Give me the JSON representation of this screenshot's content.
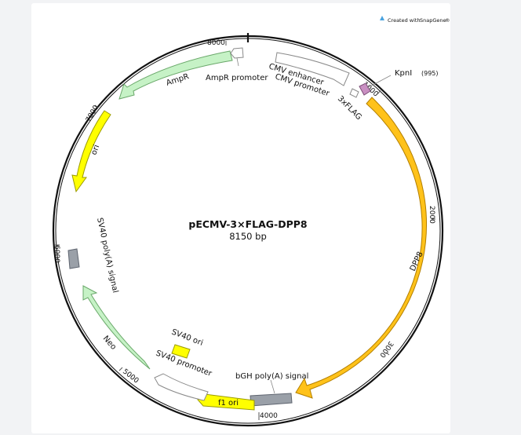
{
  "watermark": {
    "text": "Created with SnapGene®",
    "brand_prefix": "Created with ",
    "brand_name": "SnapGene",
    "brand_suffix": "®"
  },
  "plasmid": {
    "name": "pECMV-3×FLAG-DPP8",
    "size_label": "8150 bp",
    "total_bp": 8150
  },
  "ticks": [
    {
      "label": "1000",
      "bp": 1000
    },
    {
      "label": "2000",
      "bp": 2000
    },
    {
      "label": "3000",
      "bp": 3000
    },
    {
      "label": "4000",
      "bp": 4000
    },
    {
      "label": "5000",
      "bp": 5000
    },
    {
      "label": "6000",
      "bp": 6000
    },
    {
      "label": "7000",
      "bp": 7000
    },
    {
      "label": "8000",
      "bp": 8000
    }
  ],
  "features": [
    {
      "id": "cmv-enhancer",
      "label": "CMV enhancer",
      "color": "#ffffff",
      "direction": "cw"
    },
    {
      "id": "cmv-promoter",
      "label": "CMV promoter",
      "color": "#ffffff",
      "direction": "cw"
    },
    {
      "id": "3xflag",
      "label": "3xFLAG",
      "color": "#c98fc2",
      "direction": "cw"
    },
    {
      "id": "dpp8",
      "label": "DPP8",
      "color": "#ffc21a",
      "direction": "cw"
    },
    {
      "id": "bgh-polya",
      "label": "bGH poly(A) signal",
      "color": "#9aa0a8",
      "direction": "none"
    },
    {
      "id": "f1-ori",
      "label": "f1 ori",
      "color": "#ffff00",
      "direction": "ccw"
    },
    {
      "id": "sv40-promoter",
      "label": "SV40 promoter",
      "color": "#ffffff",
      "direction": "ccw"
    },
    {
      "id": "sv40-ori",
      "label": "SV40 ori",
      "color": "#ffff00",
      "direction": "none"
    },
    {
      "id": "neo",
      "label": "Neo",
      "color": "#c6f2c6",
      "direction": "ccw"
    },
    {
      "id": "sv40-polya",
      "label": "SV40 poly(A) signal",
      "color": "#9aa0a8",
      "direction": "none"
    },
    {
      "id": "ori",
      "label": "ori",
      "color": "#ffff00",
      "direction": "ccw"
    },
    {
      "id": "ampr",
      "label": "AmpR",
      "color": "#c6f2c6",
      "direction": "ccw"
    },
    {
      "id": "ampr-promoter",
      "label": "AmpR promoter",
      "color": "#ffffff",
      "direction": "ccw"
    }
  ],
  "sites": [
    {
      "name": "KpnI",
      "position_label": "(995)"
    }
  ]
}
